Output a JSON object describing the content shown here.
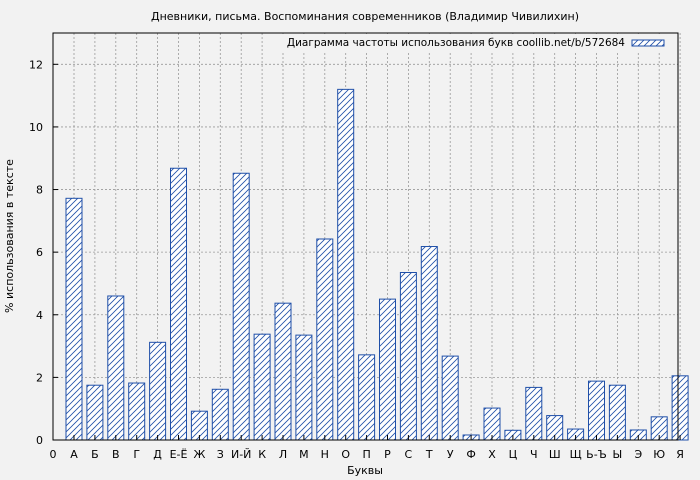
{
  "chart_data": {
    "type": "bar",
    "title": "Дневники, письма. Воспоминания современников (Владимир Чивилихин)",
    "xlabel": "Буквы",
    "ylabel": "% использования в тексте",
    "legend": "Диаграмма частоты использования букв coollib.net/b/572684",
    "legend_position": "top-right",
    "grid": true,
    "ylim": [
      0,
      13
    ],
    "yticks": [
      0,
      2,
      4,
      6,
      8,
      10,
      12
    ],
    "x_origin_label": "0",
    "categories": [
      "А",
      "Б",
      "В",
      "Г",
      "Д",
      "Е-Ё",
      "Ж",
      "З",
      "И-Й",
      "К",
      "Л",
      "М",
      "Н",
      "О",
      "П",
      "Р",
      "С",
      "Т",
      "У",
      "Ф",
      "Х",
      "Ц",
      "Ч",
      "Ш",
      "Щ",
      "Ь-Ъ",
      "Ы",
      "Э",
      "Ю",
      "Я"
    ],
    "values": [
      7.72,
      1.75,
      4.6,
      1.82,
      3.12,
      8.68,
      0.92,
      1.62,
      8.52,
      3.38,
      4.37,
      3.35,
      6.42,
      11.2,
      2.72,
      4.5,
      5.35,
      6.18,
      2.68,
      0.16,
      1.02,
      0.31,
      1.68,
      0.78,
      0.35,
      1.88,
      1.75,
      0.32,
      0.74,
      2.05
    ],
    "colors": {
      "bar_stroke": "#1f4fa8",
      "hatch": "#1f4fa8",
      "bar_fill": "#ffffff",
      "grid": "#999999",
      "background": "#f2f2f2"
    }
  }
}
